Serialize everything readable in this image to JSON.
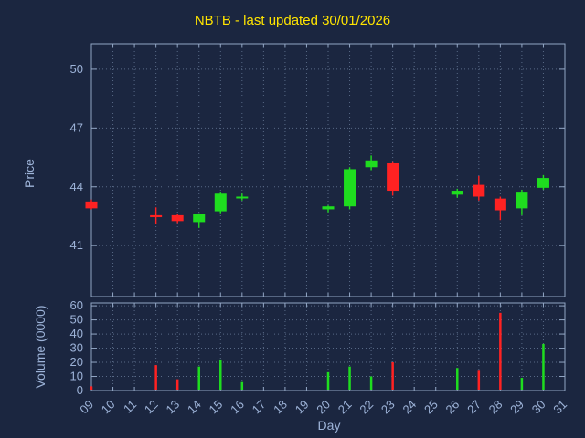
{
  "chart_data": {
    "type": "candlestick+volume",
    "title": "NBTB - last updated 30/01/2026",
    "xlabel": "Day",
    "price_ylabel": "Price",
    "volume_ylabel": "Volume (0000)",
    "x_ticks": [
      "09",
      "10",
      "11",
      "12",
      "13",
      "14",
      "15",
      "16",
      "17",
      "18",
      "19",
      "20",
      "21",
      "22",
      "23",
      "24",
      "25",
      "26",
      "27",
      "28",
      "29",
      "30",
      "31"
    ],
    "x_first_day": 9,
    "price_ticks": [
      41,
      44,
      47,
      50
    ],
    "price_range": [
      38.4,
      51.3
    ],
    "volume_ticks": [
      0,
      10,
      20,
      30,
      40,
      50,
      60
    ],
    "volume_range": [
      0,
      62
    ],
    "grid": "dotted",
    "candles": [
      {
        "day": 9,
        "open": 43.25,
        "high": 43.35,
        "low": 42.85,
        "close": 42.9,
        "volume": 3
      },
      {
        "day": 12,
        "open": 42.55,
        "high": 42.95,
        "low": 42.1,
        "close": 42.45,
        "volume": 18
      },
      {
        "day": 13,
        "open": 42.55,
        "high": 42.6,
        "low": 42.15,
        "close": 42.25,
        "volume": 8
      },
      {
        "day": 14,
        "open": 42.2,
        "high": 42.65,
        "low": 41.9,
        "close": 42.6,
        "volume": 17
      },
      {
        "day": 15,
        "open": 42.75,
        "high": 43.75,
        "low": 42.65,
        "close": 43.65,
        "volume": 22
      },
      {
        "day": 16,
        "open": 43.5,
        "high": 43.65,
        "low": 43.3,
        "close": 43.5,
        "volume": 6
      },
      {
        "day": 20,
        "open": 42.85,
        "high": 43.05,
        "low": 42.7,
        "close": 43.0,
        "volume": 13
      },
      {
        "day": 21,
        "open": 43.0,
        "high": 45.0,
        "low": 42.85,
        "close": 44.9,
        "volume": 17
      },
      {
        "day": 22,
        "open": 45.0,
        "high": 45.6,
        "low": 44.85,
        "close": 45.35,
        "volume": 10
      },
      {
        "day": 23,
        "open": 45.2,
        "high": 45.3,
        "low": 43.55,
        "close": 43.8,
        "volume": 20
      },
      {
        "day": 26,
        "open": 43.6,
        "high": 43.9,
        "low": 43.45,
        "close": 43.8,
        "volume": 16
      },
      {
        "day": 27,
        "open": 44.1,
        "high": 44.55,
        "low": 43.3,
        "close": 43.5,
        "volume": 14
      },
      {
        "day": 28,
        "open": 43.4,
        "high": 43.5,
        "low": 42.3,
        "close": 42.8,
        "volume": 55
      },
      {
        "day": 29,
        "open": 42.9,
        "high": 43.85,
        "low": 42.55,
        "close": 43.75,
        "volume": 9
      },
      {
        "day": 30,
        "open": 43.95,
        "high": 44.6,
        "low": 43.85,
        "close": 44.45,
        "volume": 33
      }
    ],
    "colors": {
      "up": "#1fdd1f",
      "down": "#ff2222",
      "background": "#1b2640",
      "title": "#ffe400",
      "axis_text": "#9db3d8",
      "grid": "#8aa0c0",
      "border": "#92a6c4"
    },
    "legend_position": "none"
  }
}
